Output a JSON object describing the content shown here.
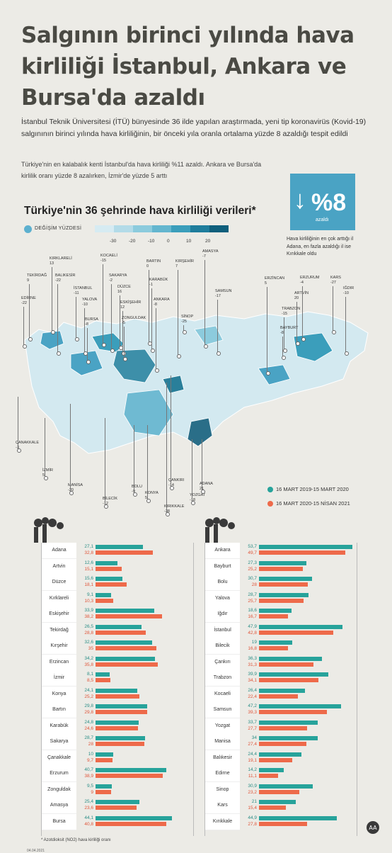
{
  "title": "Salgının birinci yılında hava kirliliği İstanbul, Ankara ve Bursa'da azaldı",
  "intro": "İstanbul Teknik Üniversitesi (İTÜ) bünyesinde 36 ilde yapılan araştırmada, yeni tip koronavirüs (Kovid-19) salgınının birinci yılında hava kirliliğinin, bir önceki yıla oranla ortalama yüzde 8 azaldığı tespit edildi",
  "sub": "Türkiye'nin en kalabalık kenti İstanbul'da hava kirliliği %11 azaldı. Ankara ve Bursa'da kirlilik oranı yüzde 8 azalırken, İzmir'de yüzde 5 arttı",
  "map_title": "Türkiye'nin 36 şehrinde hava kirliliği verileri*",
  "legend_label": "DEĞİŞİM YÜZDESİ",
  "scale": {
    "ticks": [
      "-30",
      "-20",
      "-10",
      "0",
      "10",
      "20"
    ],
    "colors": [
      "#d6ebf2",
      "#b3dbe8",
      "#8ccbdd",
      "#64b6cf",
      "#3b9ebb",
      "#1f7d9c",
      "#0f5f7c"
    ]
  },
  "highlight": {
    "arrow": "↓",
    "value": "%8",
    "unit": "azaldı",
    "note": "Hava kirliliğinin en çok arttığı il Adana, en fazla azaldığı il ise Kırıkkale oldu"
  },
  "cities": [
    {
      "name": "KIRKLARELİ",
      "value": "13"
    },
    {
      "name": "TEKİRDAĞ",
      "value": "9"
    },
    {
      "name": "BALIKESİR",
      "value": "-22"
    },
    {
      "name": "EDİRNE",
      "value": "-22"
    },
    {
      "name": "İSTANBUL",
      "value": "-11"
    },
    {
      "name": "YALOVA",
      "value": "-10"
    },
    {
      "name": "BURSA",
      "value": "-8"
    },
    {
      "name": "KOCAELİ",
      "value": "-15"
    },
    {
      "name": "SAKARYA",
      "value": "-2"
    },
    {
      "name": "DÜZCE",
      "value": "16"
    },
    {
      "name": "ESKİŞEHİR",
      "value": "12"
    },
    {
      "name": "ZONGULDAK",
      "value": "-5"
    },
    {
      "name": "BARTIN",
      "value": "0"
    },
    {
      "name": "KARABÜK",
      "value": "-1"
    },
    {
      "name": "ANKARA",
      "value": "-8"
    },
    {
      "name": "KIRŞEHİR",
      "value": "7"
    },
    {
      "name": "AMASYA",
      "value": "-7"
    },
    {
      "name": "SAMSUN",
      "value": "-17"
    },
    {
      "name": "SİNOP",
      "value": "-25"
    },
    {
      "name": "ERZİNCAN",
      "value": "5"
    },
    {
      "name": "ERZURUM",
      "value": "-4"
    },
    {
      "name": "KARS",
      "value": "-27"
    },
    {
      "name": "ARTVİN",
      "value": "20"
    },
    {
      "name": "IĞDIR",
      "value": "-10"
    },
    {
      "name": "TRABZON",
      "value": "-15"
    },
    {
      "name": "BAYBURT",
      "value": "-8"
    },
    {
      "name": "ÇANAKKALE",
      "value": "-3"
    },
    {
      "name": "İZMİR",
      "value": "5"
    },
    {
      "name": "MANİSA",
      "value": "-20"
    },
    {
      "name": "BİLECİK",
      "value": "-12"
    },
    {
      "name": "BOLU",
      "value": "-9"
    },
    {
      "name": "KONYA",
      "value": "5"
    },
    {
      "name": "ÇANKIRI",
      "value": "-14"
    },
    {
      "name": "KIRIKKALE",
      "value": "-38"
    },
    {
      "name": "YOZGAT",
      "value": "-18"
    },
    {
      "name": "ADANA",
      "value": "21"
    }
  ],
  "legend_series": [
    {
      "label": "16 MART 2019-15 MART 2020",
      "color": "#27a39b"
    },
    {
      "label": "16 MART 2020-15 NİSAN 2021",
      "color": "#ee6a4a"
    }
  ],
  "chart_data": [
    {
      "type": "bar",
      "categories": [
        "Adana",
        "Artvin",
        "Düzce",
        "Kırklareli",
        "Eskişehir",
        "Tekirdağ",
        "Kırşehir",
        "Erzincan",
        "İzmir",
        "Konya",
        "Bartın",
        "Karabük",
        "Sakarya",
        "Çanakkale",
        "Erzurum",
        "Zonguldak",
        "Amasya",
        "Bursa"
      ],
      "series": [
        {
          "name": "16 MART 2019-15 MART 2020",
          "values": [
            "27,1",
            "12,6",
            "15,6",
            "9,1",
            "33,9",
            "26,5",
            "32,6",
            "34,2",
            "8,1",
            "24,1",
            "29,8",
            "24,8",
            "28,7",
            "10",
            "40,7",
            "9,5",
            "25,4",
            "44,1"
          ]
        },
        {
          "name": "16 MART 2020-15 NİSAN 2021",
          "values": [
            "32,8",
            "15,1",
            "18,1",
            "10,3",
            "38,2",
            "28,8",
            "35",
            "35,8",
            "8,5",
            "25,2",
            "29,8",
            "24,6",
            "28",
            "9,7",
            "38,9",
            "9",
            "23,6",
            "40,8"
          ]
        }
      ],
      "xlim": [
        0,
        55
      ]
    },
    {
      "type": "bar",
      "categories": [
        "Ankara",
        "Bayburt",
        "Bolu",
        "Yalova",
        "Iğdır",
        "İstanbul",
        "Bilecik",
        "Çankırı",
        "Trabzon",
        "Kocaeli",
        "Samsun",
        "Yozgat",
        "Manisa",
        "Balıkesir",
        "Edirne",
        "Sinop",
        "Kars",
        "Kırıkkale"
      ],
      "series": [
        {
          "name": "16 MART 2019-15 MART 2020",
          "values": [
            "53,7",
            "27,3",
            "30,7",
            "28,7",
            "18,6",
            "47,9",
            "19",
            "36,3",
            "39,9",
            "26,4",
            "47,2",
            "33,7",
            "34",
            "24,4",
            "14,2",
            "30,9",
            "21",
            "44,9"
          ]
        },
        {
          "name": "16 MART 2020-15 NİSAN 2021",
          "values": [
            "49,7",
            "25,2",
            "28",
            "25,7",
            "16,7",
            "42,8",
            "16,8",
            "31,3",
            "34,1",
            "22,4",
            "39,3",
            "27,7",
            "27,4",
            "19,1",
            "11,1",
            "23,2",
            "15,4",
            "27,8"
          ]
        }
      ],
      "xlim": [
        0,
        55
      ]
    }
  ],
  "footnote": "* Azotdioksit (NO2) hava kirliliği oranı",
  "date": "04.04.2021",
  "logo_text": "AA"
}
